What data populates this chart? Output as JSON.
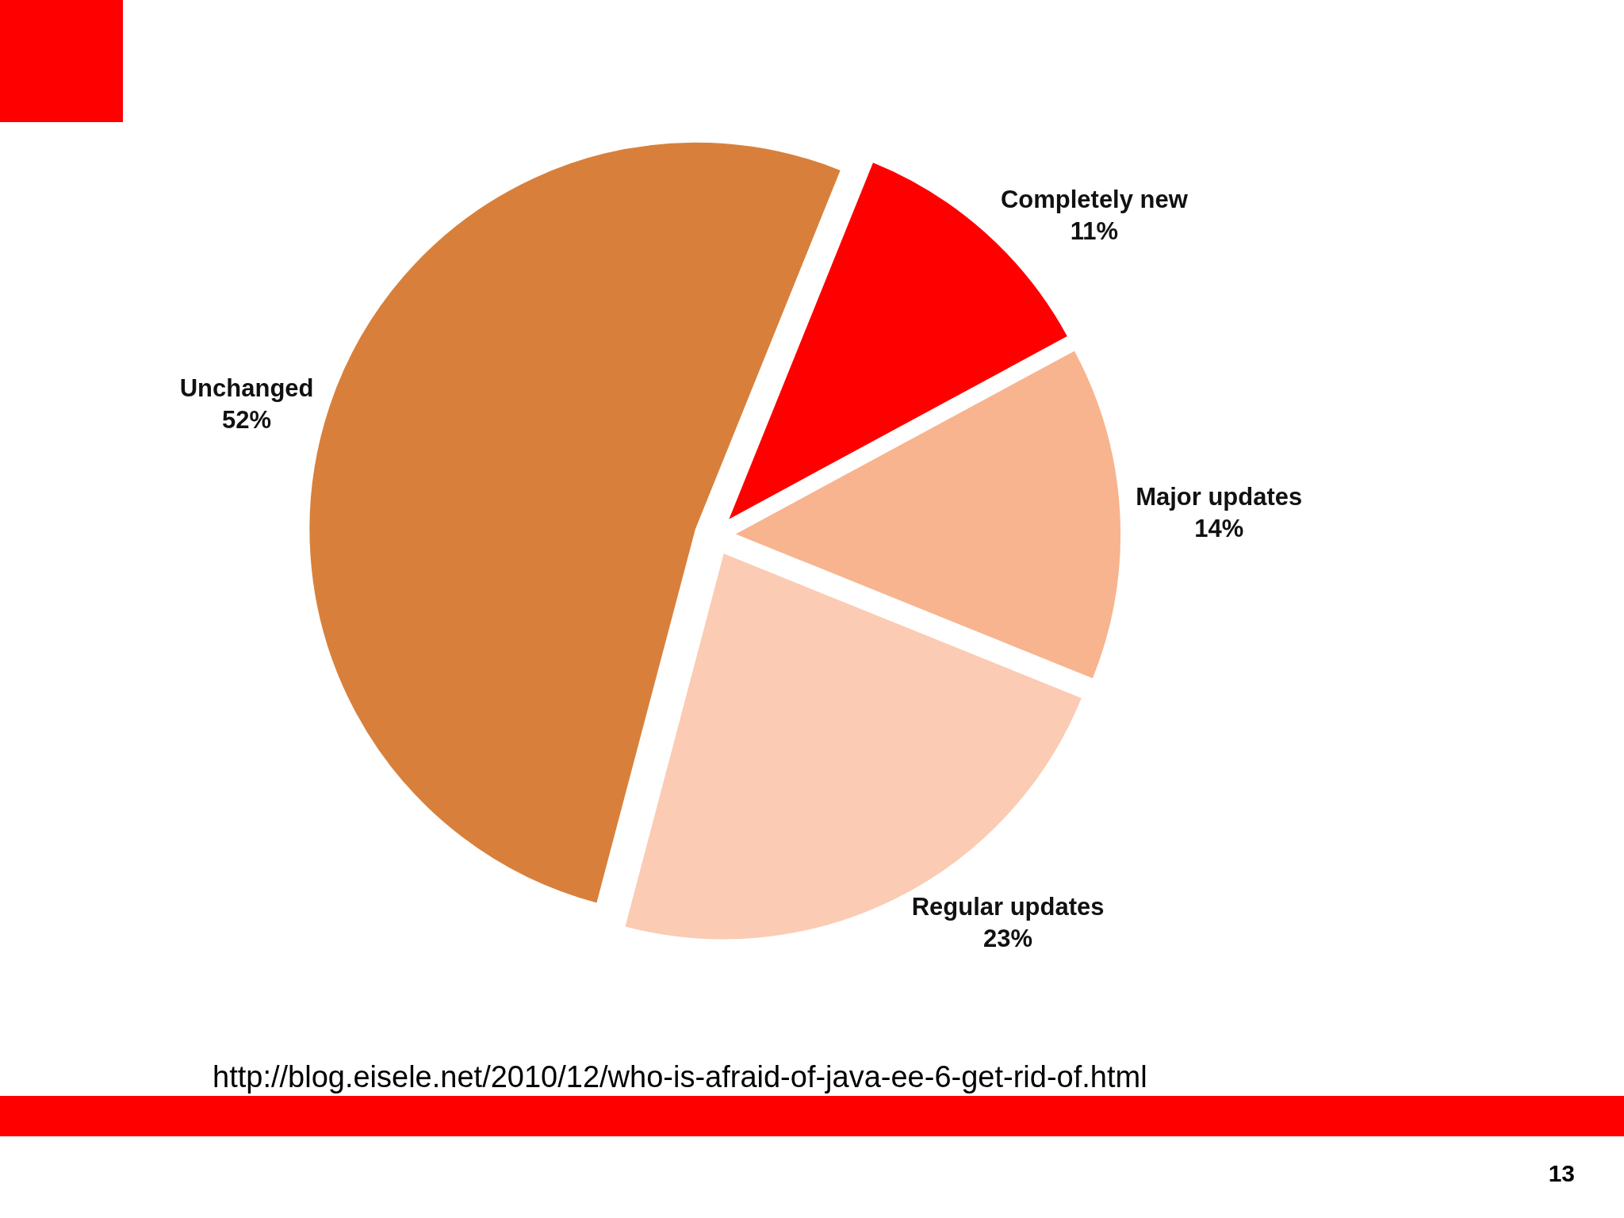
{
  "chart_data": {
    "type": "pie",
    "categories": [
      "Completely new",
      "Major updates",
      "Regular updates",
      "Unchanged"
    ],
    "values": [
      11,
      14,
      23,
      52
    ],
    "value_labels": [
      "11%",
      "14%",
      "23%",
      "52%"
    ],
    "colors": [
      "#ff0000",
      "#f7b48f",
      "#fbcbb3",
      "#d8803b"
    ],
    "annotations": [
      "http://blog.eisele.net/2010/12/who-is-afraid-of-java-ee-6-get-rid-of.html",
      "13"
    ]
  }
}
